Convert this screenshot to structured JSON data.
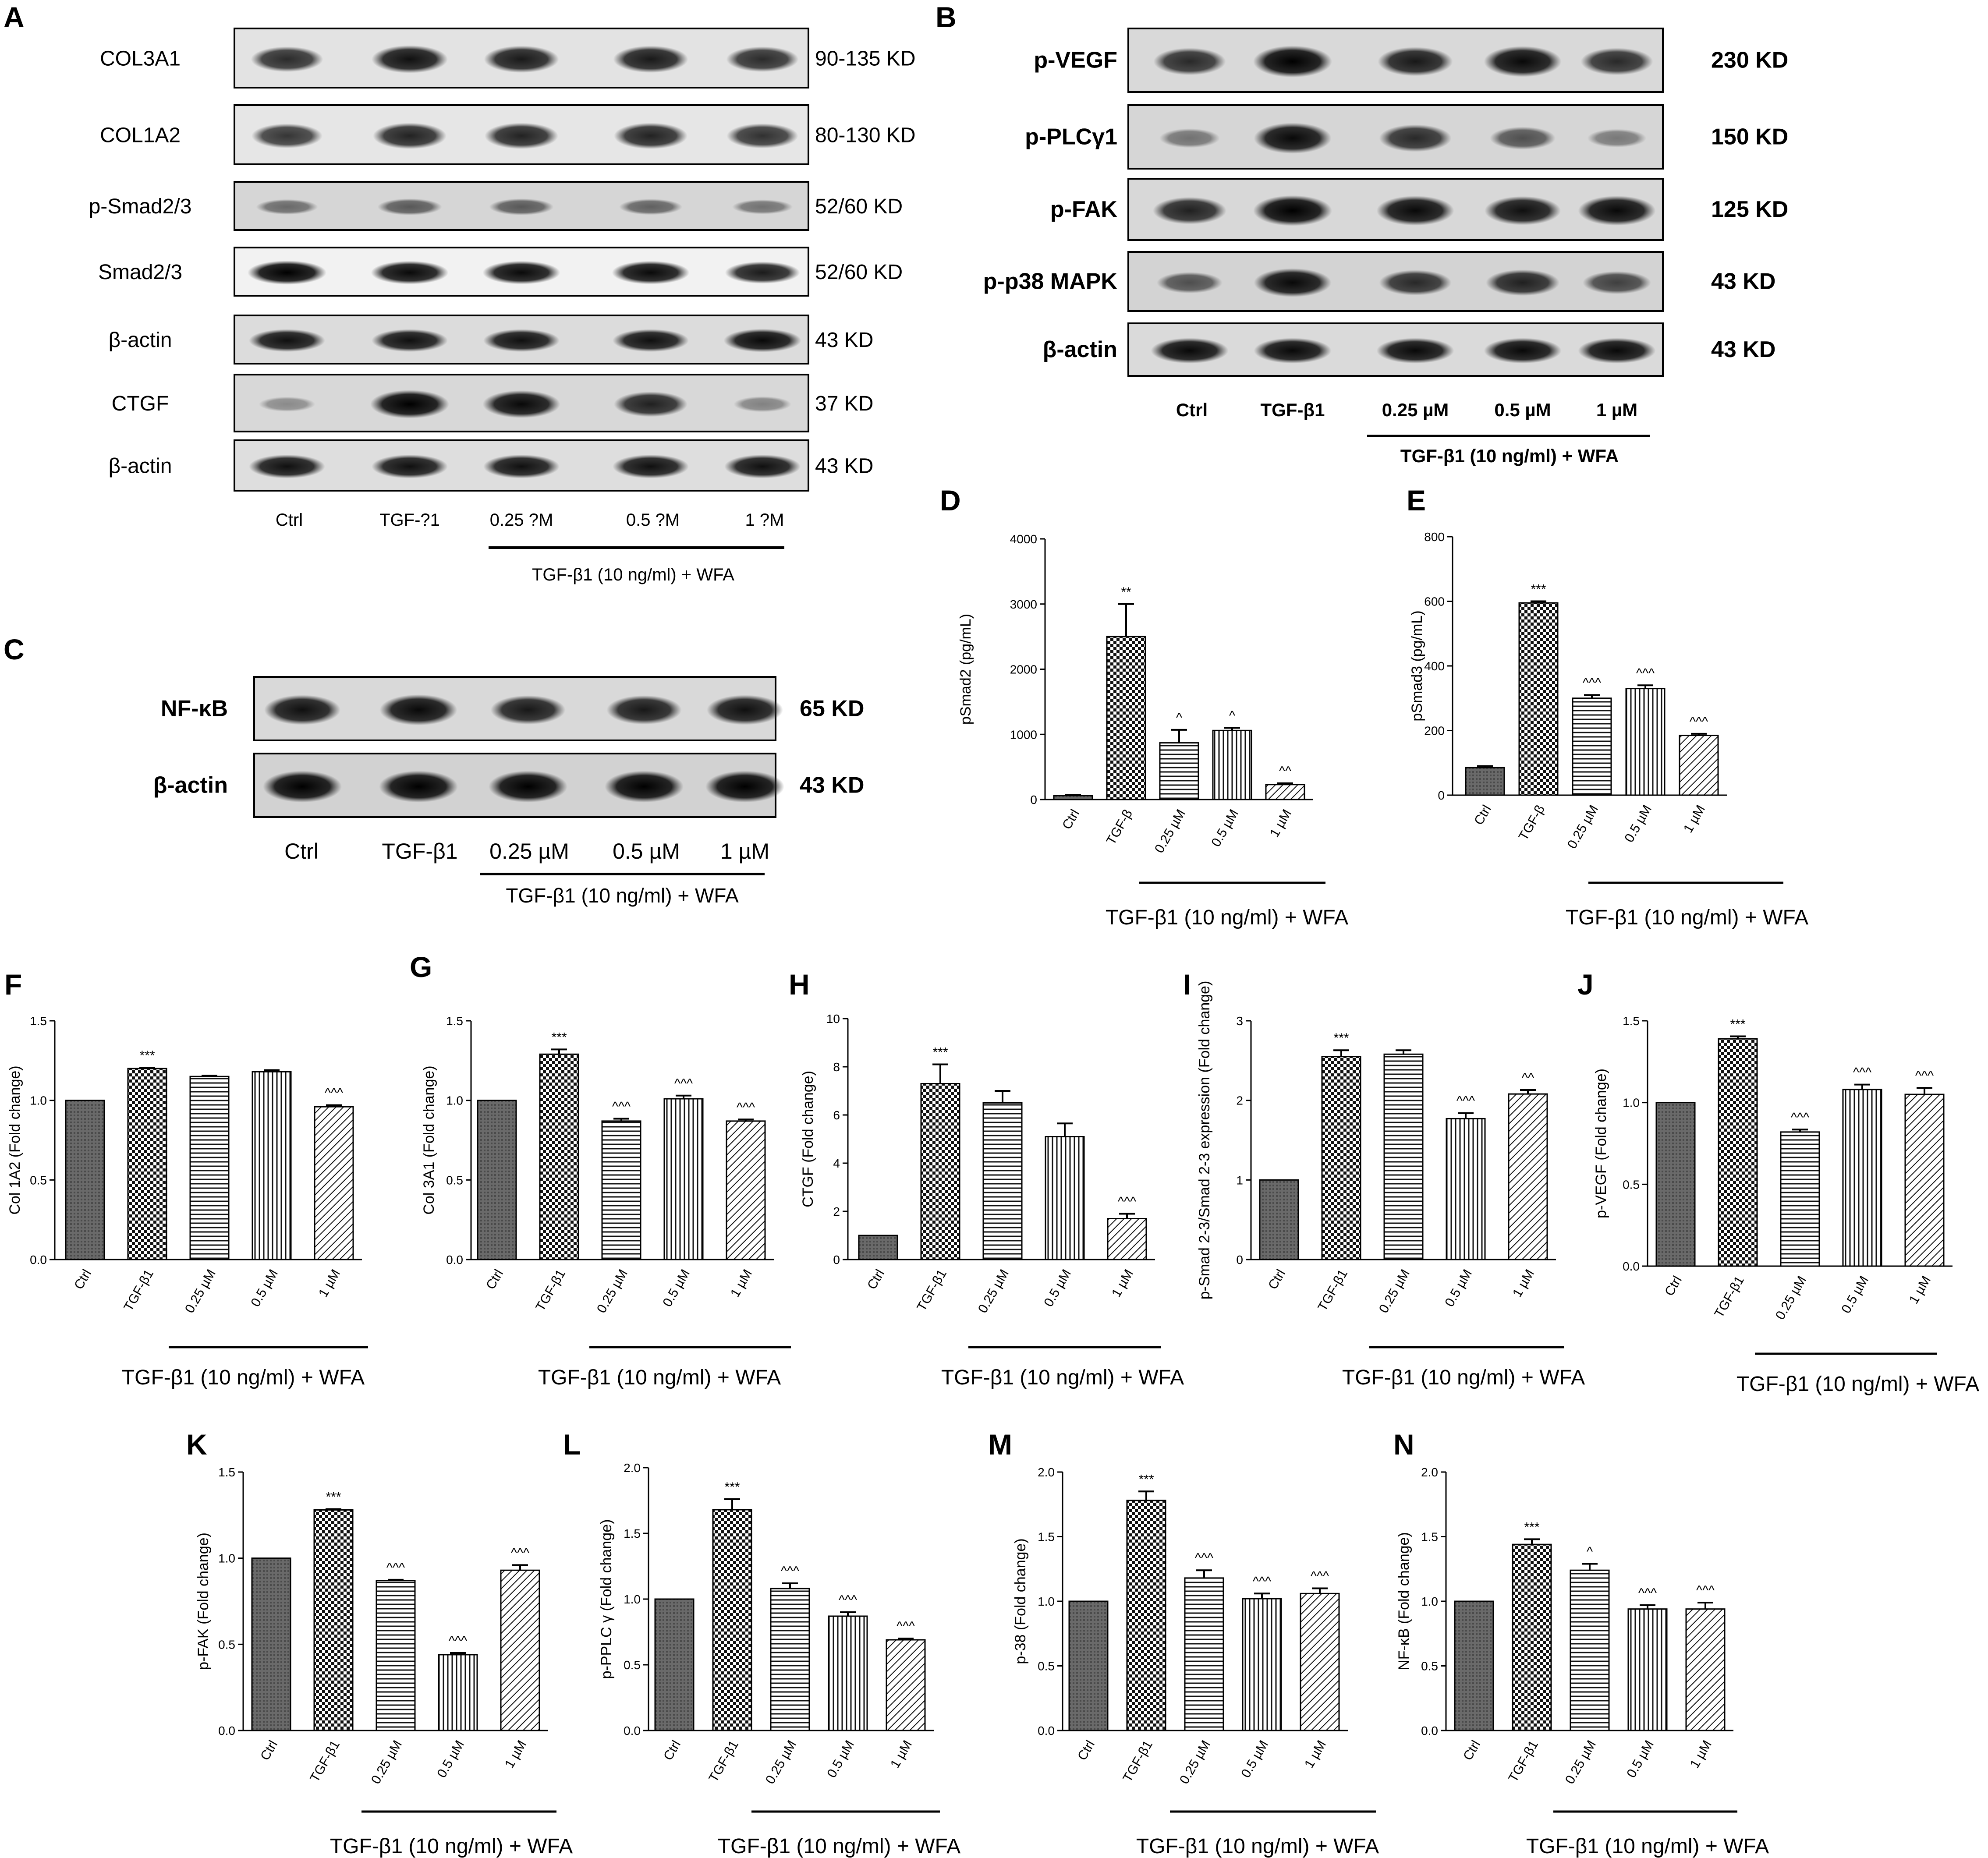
{
  "blots": {
    "A": {
      "letter": "A",
      "rows": [
        {
          "label": "COL3A1",
          "kd": "90-135 KD"
        },
        {
          "label": "COL1A2",
          "kd": "80-130 KD"
        },
        {
          "label": "p-Smad2/3",
          "kd": "52/60 KD"
        },
        {
          "label": "Smad2/3",
          "kd": "52/60 KD"
        },
        {
          "label": "β-actin",
          "kd": "43 KD"
        },
        {
          "label": "CTGF",
          "kd": "37 KD"
        },
        {
          "label": "β-actin",
          "kd": "43 KD"
        }
      ],
      "lanes": [
        "Ctrl",
        "TGF-?1",
        "0.25 ?M",
        "0.5 ?M",
        "1 ?M"
      ],
      "group": "TGF-β1 (10 ng/ml) + WFA"
    },
    "B": {
      "letter": "B",
      "rows": [
        {
          "label": "p-VEGF",
          "kd": "230 KD"
        },
        {
          "label": "p-PLCγ1",
          "kd": "150 KD"
        },
        {
          "label": "p-FAK",
          "kd": "125 KD"
        },
        {
          "label": "p-p38 MAPK",
          "kd": "43 KD"
        },
        {
          "label": "β-actin",
          "kd": "43 KD"
        }
      ],
      "lanes": [
        "Ctrl",
        "TGF-β1",
        "0.25 µM",
        "0.5 µM",
        "1 µM"
      ],
      "group": "TGF-β1 (10 ng/ml) + WFA"
    },
    "C": {
      "letter": "C",
      "rows": [
        {
          "label": "NF-κB",
          "kd": "65 KD"
        },
        {
          "label": "β-actin",
          "kd": "43 KD"
        }
      ],
      "lanes": [
        "Ctrl",
        "TGF-β1",
        "0.25 µM",
        "0.5 µM",
        "1 µM"
      ],
      "group": "TGF-β1 (10 ng/ml) + WFA"
    }
  },
  "chart_data": [
    {
      "panel": "D",
      "type": "bar",
      "ylabel": "pSmad2 (pg/mL)",
      "categories": [
        "Ctrl",
        "TGF-β",
        "0.25 µM",
        "0.5 µM",
        "1 µM"
      ],
      "values": [
        60,
        2500,
        870,
        1060,
        230
      ],
      "errors": [
        10,
        500,
        200,
        40,
        20
      ],
      "sig": [
        "",
        "**",
        "^",
        "^",
        "^^"
      ],
      "ylim": [
        0,
        4000
      ],
      "ticks": [
        "0",
        "1000",
        "2000",
        "3000",
        "4000"
      ],
      "group_label": "TGF-β1 (10 ng/ml) + WFA"
    },
    {
      "panel": "E",
      "type": "bar",
      "ylabel": "pSmad3 (pg/mL)",
      "categories": [
        "Ctrl",
        "TGF-β",
        "0.25 µM",
        "0.5 µM",
        "1 µM"
      ],
      "values": [
        85,
        595,
        300,
        330,
        185
      ],
      "errors": [
        5,
        5,
        10,
        10,
        5
      ],
      "sig": [
        "",
        "***",
        "^^^",
        "^^^",
        "^^^"
      ],
      "ylim": [
        0,
        800
      ],
      "ticks": [
        "0",
        "200",
        "400",
        "600",
        "800"
      ],
      "group_label": "TGF-β1 (10 ng/ml) + WFA"
    },
    {
      "panel": "F",
      "type": "bar",
      "ylabel": "Col 1A2 (Fold change)",
      "categories": [
        "Ctrl",
        "TGF-β1",
        "0.25 µM",
        "0.5 µM",
        "1 µM"
      ],
      "values": [
        1.0,
        1.2,
        1.15,
        1.18,
        0.96
      ],
      "errors": [
        0,
        0.005,
        0.005,
        0.01,
        0.01
      ],
      "sig": [
        "",
        "***",
        "",
        "",
        "^^^"
      ],
      "ylim": [
        0,
        1.5
      ],
      "ticks": [
        "0.0",
        "0.5",
        "1.0",
        "1.5"
      ],
      "group_label": "TGF-β1 (10 ng/ml) + WFA"
    },
    {
      "panel": "G",
      "type": "bar",
      "ylabel": "Col 3A1 (Fold change)",
      "categories": [
        "Ctrl",
        "TGF-β1",
        "0.25 µM",
        "0.5 µM",
        "1 µM"
      ],
      "values": [
        1.0,
        1.29,
        0.87,
        1.01,
        0.87
      ],
      "errors": [
        0,
        0.03,
        0.015,
        0.02,
        0.01
      ],
      "sig": [
        "",
        "***",
        "^^^",
        "^^^",
        "^^^"
      ],
      "ylim": [
        0,
        1.5
      ],
      "ticks": [
        "0.0",
        "0.5",
        "1.0",
        "1.5"
      ],
      "group_label": "TGF-β1 (10 ng/ml) + WFA"
    },
    {
      "panel": "H",
      "type": "bar",
      "ylabel": "CTGF (Fold change)",
      "categories": [
        "Ctrl",
        "TGF-β1",
        "0.25 µM",
        "0.5 µM",
        "1 µM"
      ],
      "values": [
        1.0,
        7.3,
        6.5,
        5.1,
        1.7
      ],
      "errors": [
        0,
        0.8,
        0.5,
        0.55,
        0.2
      ],
      "sig": [
        "",
        "***",
        "",
        "",
        "^^^"
      ],
      "ylim": [
        0,
        10
      ],
      "ticks": [
        "0",
        "2",
        "4",
        "6",
        "8",
        "10"
      ],
      "group_label": "TGF-β1 (10 ng/ml) + WFA"
    },
    {
      "panel": "I",
      "type": "bar",
      "ylabel": "p-Smad 2-3/Smad 2-3 expression (Fold change)",
      "categories": [
        "Ctrl",
        "TGF-β1",
        "0.25 µM",
        "0.5 µM",
        "1 µM"
      ],
      "values": [
        1.0,
        2.55,
        2.58,
        1.77,
        2.08
      ],
      "errors": [
        0,
        0.08,
        0.05,
        0.07,
        0.05
      ],
      "sig": [
        "",
        "***",
        "",
        "^^^",
        "^^"
      ],
      "ylim": [
        0,
        3
      ],
      "ticks": [
        "0",
        "1",
        "2",
        "3"
      ],
      "group_label": "TGF-β1 (10 ng/ml) + WFA"
    },
    {
      "panel": "J",
      "type": "bar",
      "ylabel": "p-VEGF (Fold change)",
      "categories": [
        "Ctrl",
        "TGF-β1",
        "0.25 µM",
        "0.5 µM",
        "1 µM"
      ],
      "values": [
        1.0,
        1.39,
        0.82,
        1.08,
        1.05
      ],
      "errors": [
        0,
        0.015,
        0.015,
        0.03,
        0.04
      ],
      "sig": [
        "",
        "***",
        "^^^",
        "^^^",
        "^^^"
      ],
      "ylim": [
        0,
        1.5
      ],
      "ticks": [
        "0.0",
        "0.5",
        "1.0",
        "1.5"
      ],
      "group_label": "TGF-β1 (10 ng/ml) + WFA"
    },
    {
      "panel": "K",
      "type": "bar",
      "ylabel": "p-FAK (Fold change)",
      "categories": [
        "Ctrl",
        "TGF-β1",
        "0.25 µM",
        "0.5 µM",
        "1 µM"
      ],
      "values": [
        1.0,
        1.28,
        0.87,
        0.44,
        0.93
      ],
      "errors": [
        0,
        0.005,
        0.005,
        0.01,
        0.03
      ],
      "sig": [
        "",
        "***",
        "^^^",
        "^^^",
        "^^^"
      ],
      "ylim": [
        0,
        1.5
      ],
      "ticks": [
        "0.0",
        "0.5",
        "1.0",
        "1.5"
      ],
      "group_label": "TGF-β1 (10 ng/ml) + WFA"
    },
    {
      "panel": "L",
      "type": "bar",
      "ylabel": "p-PPLC γ (Fold change)",
      "categories": [
        "Ctrl",
        "TGF-β1",
        "0.25 µM",
        "0.5 µM",
        "1 µM"
      ],
      "values": [
        1.0,
        1.68,
        1.08,
        0.87,
        0.69
      ],
      "errors": [
        0,
        0.08,
        0.04,
        0.03,
        0.01
      ],
      "sig": [
        "",
        "***",
        "^^^",
        "^^^",
        "^^^"
      ],
      "ylim": [
        0,
        2
      ],
      "ticks": [
        "0.0",
        "0.5",
        "1.0",
        "1.5",
        "2.0"
      ],
      "group_label": "TGF-β1 (10 ng/ml) + WFA"
    },
    {
      "panel": "M",
      "type": "bar",
      "ylabel": "p-38 (Fold change)",
      "categories": [
        "Ctrl",
        "TGF-β1",
        "0.25 µM",
        "0.5 µM",
        "1 µM"
      ],
      "values": [
        1.0,
        1.78,
        1.18,
        1.02,
        1.06
      ],
      "errors": [
        0,
        0.07,
        0.06,
        0.04,
        0.04
      ],
      "sig": [
        "",
        "***",
        "^^^",
        "^^^",
        "^^^"
      ],
      "ylim": [
        0,
        2
      ],
      "ticks": [
        "0.0",
        "0.5",
        "1.0",
        "1.5",
        "2.0"
      ],
      "group_label": "TGF-β1 (10 ng/ml) + WFA"
    },
    {
      "panel": "N",
      "type": "bar",
      "ylabel": "NF-κB (Fold change)",
      "categories": [
        "Ctrl",
        "TGF-β1",
        "0.25 µM",
        "0.5 µM",
        "1 µM"
      ],
      "values": [
        1.0,
        1.44,
        1.24,
        0.94,
        0.94
      ],
      "errors": [
        0,
        0.04,
        0.05,
        0.03,
        0.05
      ],
      "sig": [
        "",
        "***",
        "^",
        "^^^",
        "^^^"
      ],
      "ylim": [
        0,
        2
      ],
      "ticks": [
        "0.0",
        "0.5",
        "1.0",
        "1.5",
        "2.0"
      ],
      "group_label": "TGF-β1 (10 ng/ml) + WFA"
    }
  ]
}
